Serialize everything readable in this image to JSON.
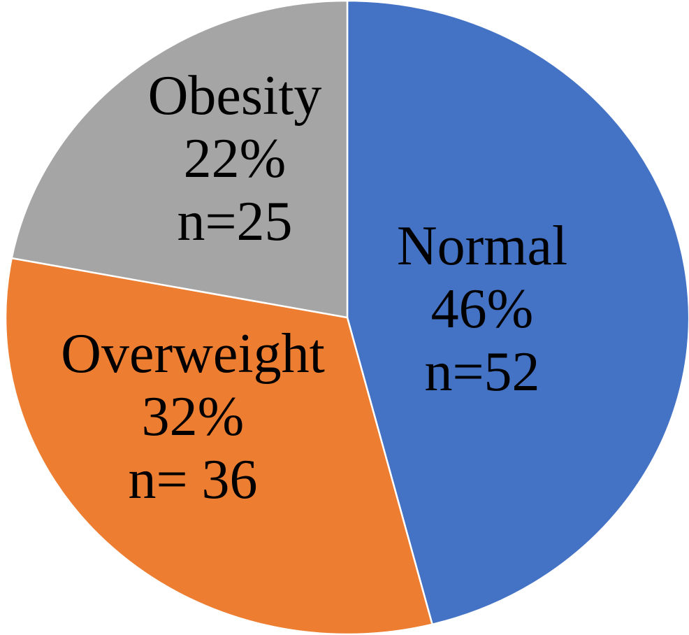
{
  "chart_data": {
    "type": "pie",
    "title": "",
    "start_angle_deg": 0,
    "direction": "clockwise",
    "legend": "none",
    "background_color": "#ffffff",
    "border_color": "#ffffff",
    "label_text_color": "#000000",
    "categories": [
      "Normal",
      "Overweight",
      "Obesity"
    ],
    "values": [
      46,
      32,
      22
    ],
    "counts": [
      52,
      36,
      25
    ],
    "slices": [
      {
        "label": "Normal",
        "percent": 46,
        "n": 52,
        "color": "#4472C4",
        "lines": [
          "Normal",
          "46%",
          "n=52"
        ]
      },
      {
        "label": "Overweight",
        "percent": 32,
        "n": 36,
        "color": "#ED7D31",
        "lines": [
          "Overweight",
          "32%",
          "n= 36"
        ]
      },
      {
        "label": "Obesity",
        "percent": 22,
        "n": 25,
        "color": "#A5A5A5",
        "lines": [
          "Obesity",
          "22%",
          "n=25"
        ]
      }
    ]
  }
}
